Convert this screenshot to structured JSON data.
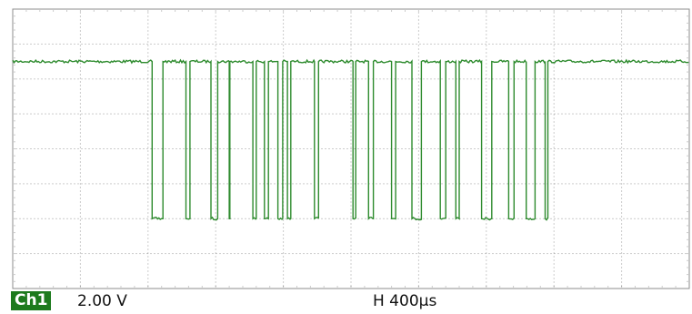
{
  "chart_data": {
    "type": "line",
    "title": "",
    "xlabel": "",
    "ylabel": "",
    "grid": true,
    "divisions": {
      "x": 10,
      "y": 8
    },
    "x_unit": "div",
    "y_unit": "div",
    "xlim": [
      0,
      10
    ],
    "ylim": [
      -4,
      4
    ],
    "trace_color": "#2e8b2e",
    "grid_color": "#9a9a9a",
    "levels": {
      "high": 2.5,
      "low": -2.0
    },
    "series": [
      {
        "channel": "Ch1",
        "transitions": [
          2.06,
          2.22,
          2.56,
          2.62,
          2.93,
          3.03,
          3.2,
          3.21,
          3.55,
          3.6,
          3.72,
          3.78,
          3.92,
          3.99,
          4.06,
          4.11,
          4.46,
          4.52,
          5.03,
          5.07,
          5.26,
          5.33,
          5.6,
          5.66,
          5.9,
          6.04,
          6.32,
          6.4,
          6.55,
          6.6,
          6.93,
          7.08,
          7.33,
          7.41,
          7.59,
          7.72,
          7.87,
          7.91
        ]
      }
    ]
  },
  "status_bar": {
    "channel_label": "Ch1",
    "volts_per_div": "2.00 V",
    "time_base": "H 400µs"
  }
}
